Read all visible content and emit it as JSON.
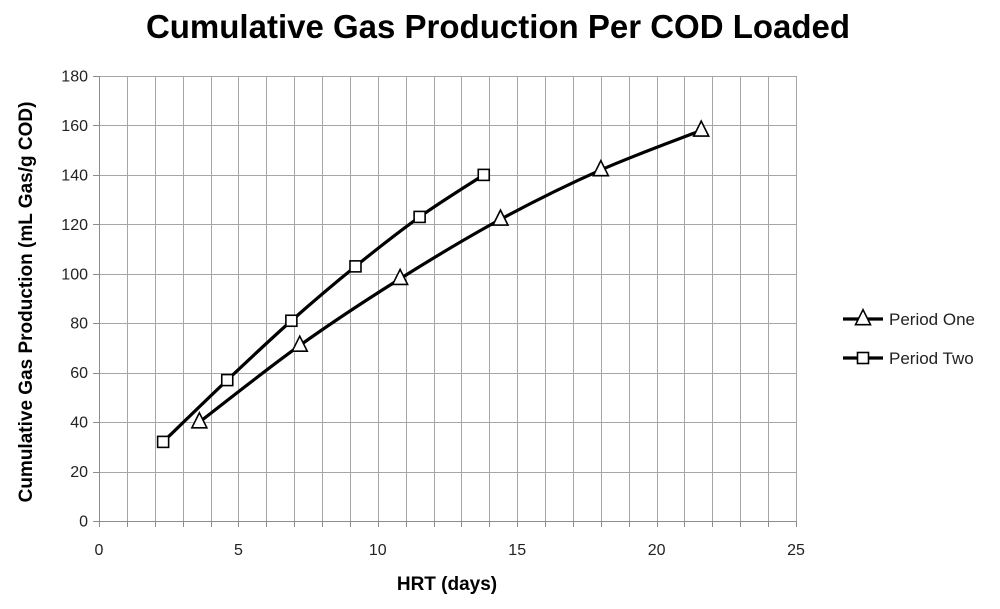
{
  "chart_data": {
    "type": "line",
    "title": "Cumulative Gas Production Per COD Loaded",
    "xlabel": "HRT (days)",
    "ylabel": "Cumulative Gas Production (mL Gas/g COD)",
    "xlim": [
      0,
      25
    ],
    "ylim": [
      0,
      180
    ],
    "x_major_ticks": [
      0,
      5,
      10,
      15,
      20,
      25
    ],
    "x_minor_step": 1,
    "y_ticks": [
      0,
      20,
      40,
      60,
      80,
      100,
      120,
      140,
      160,
      180
    ],
    "grid": true,
    "legend_position": "right",
    "series": [
      {
        "name": "Period One",
        "marker": "triangle",
        "color": "#000000",
        "x": [
          3.6,
          7.2,
          10.8,
          14.4,
          18.0,
          21.6
        ],
        "y": [
          40,
          71,
          98,
          122,
          142,
          158
        ]
      },
      {
        "name": "Period Two",
        "marker": "square",
        "color": "#000000",
        "x": [
          2.3,
          4.6,
          6.9,
          9.2,
          11.5,
          13.8
        ],
        "y": [
          32,
          57,
          81,
          103,
          123,
          140
        ]
      }
    ]
  }
}
